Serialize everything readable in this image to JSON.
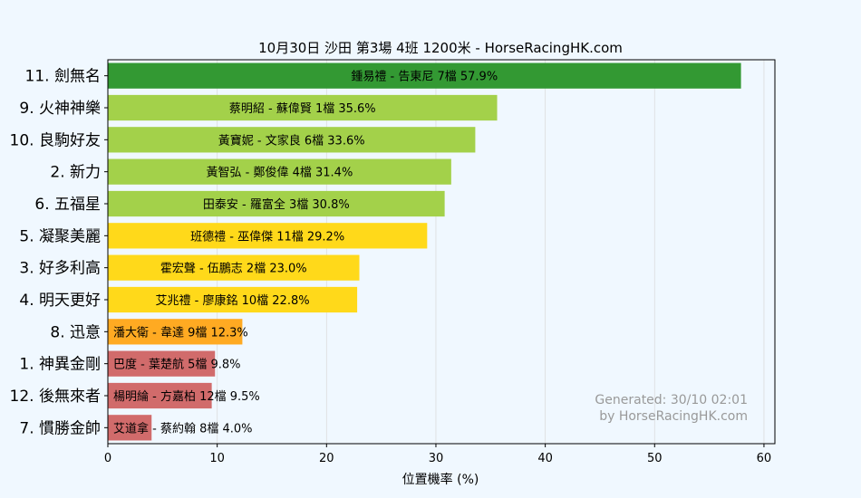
{
  "chart_data": {
    "type": "bar",
    "orientation": "horizontal",
    "title": "10月30日  沙田  第3場  4班  1200米 - HorseRacingHK.com",
    "xlabel": "位置機率 (%)",
    "ylabel": "",
    "xlim": [
      0,
      61
    ],
    "xticks": [
      0,
      10,
      20,
      30,
      40,
      50,
      60
    ],
    "grid": true,
    "categories": [
      "11. 劍無名",
      "9. 火神神樂",
      "10. 良駒好友",
      "2. 新力",
      "6. 五福星",
      "5. 凝聚美麗",
      "3. 好多利高",
      "4. 明天更好",
      "8. 迅意",
      "1. 神異金剛",
      "12. 後無來者",
      "7. 慣勝金帥"
    ],
    "values": [
      57.9,
      35.6,
      33.6,
      31.4,
      30.8,
      29.2,
      23.0,
      22.8,
      12.3,
      9.8,
      9.5,
      4.0
    ],
    "bar_labels": [
      "鍾易禮 - 告東尼 7檔  57.9%",
      "蔡明紹 - 蘇偉賢 1檔  35.6%",
      "黃寶妮 - 文家良 6檔  33.6%",
      "黃智弘 - 鄭俊偉 4檔  31.4%",
      "田泰安 - 羅富全 3檔  30.8%",
      "班德禮 - 巫偉傑 11檔  29.2%",
      "霍宏聲 - 伍鵬志 2檔  23.0%",
      "艾兆禮 - 廖康銘 10檔  22.8%",
      "潘大衛 - 韋達 9檔  12.3%",
      "巴度 - 葉楚航 5檔  9.8%",
      "楊明綸 - 方嘉柏 12檔  9.5%",
      "艾道拿 - 蔡約翰 8檔  4.0%"
    ],
    "colors": [
      "#339933",
      "#a3d14a",
      "#a3d14a",
      "#a3d14a",
      "#a3d14a",
      "#ffd91a",
      "#ffd91a",
      "#ffd91a",
      "#ffaa22",
      "#d16b6b",
      "#d16b6b",
      "#d16b6b"
    ],
    "watermark": [
      "Generated: 30/10 02:01",
      "by HorseRacingHK.com"
    ],
    "watermark_color": "#999999",
    "background": "#f0f8ff"
  }
}
